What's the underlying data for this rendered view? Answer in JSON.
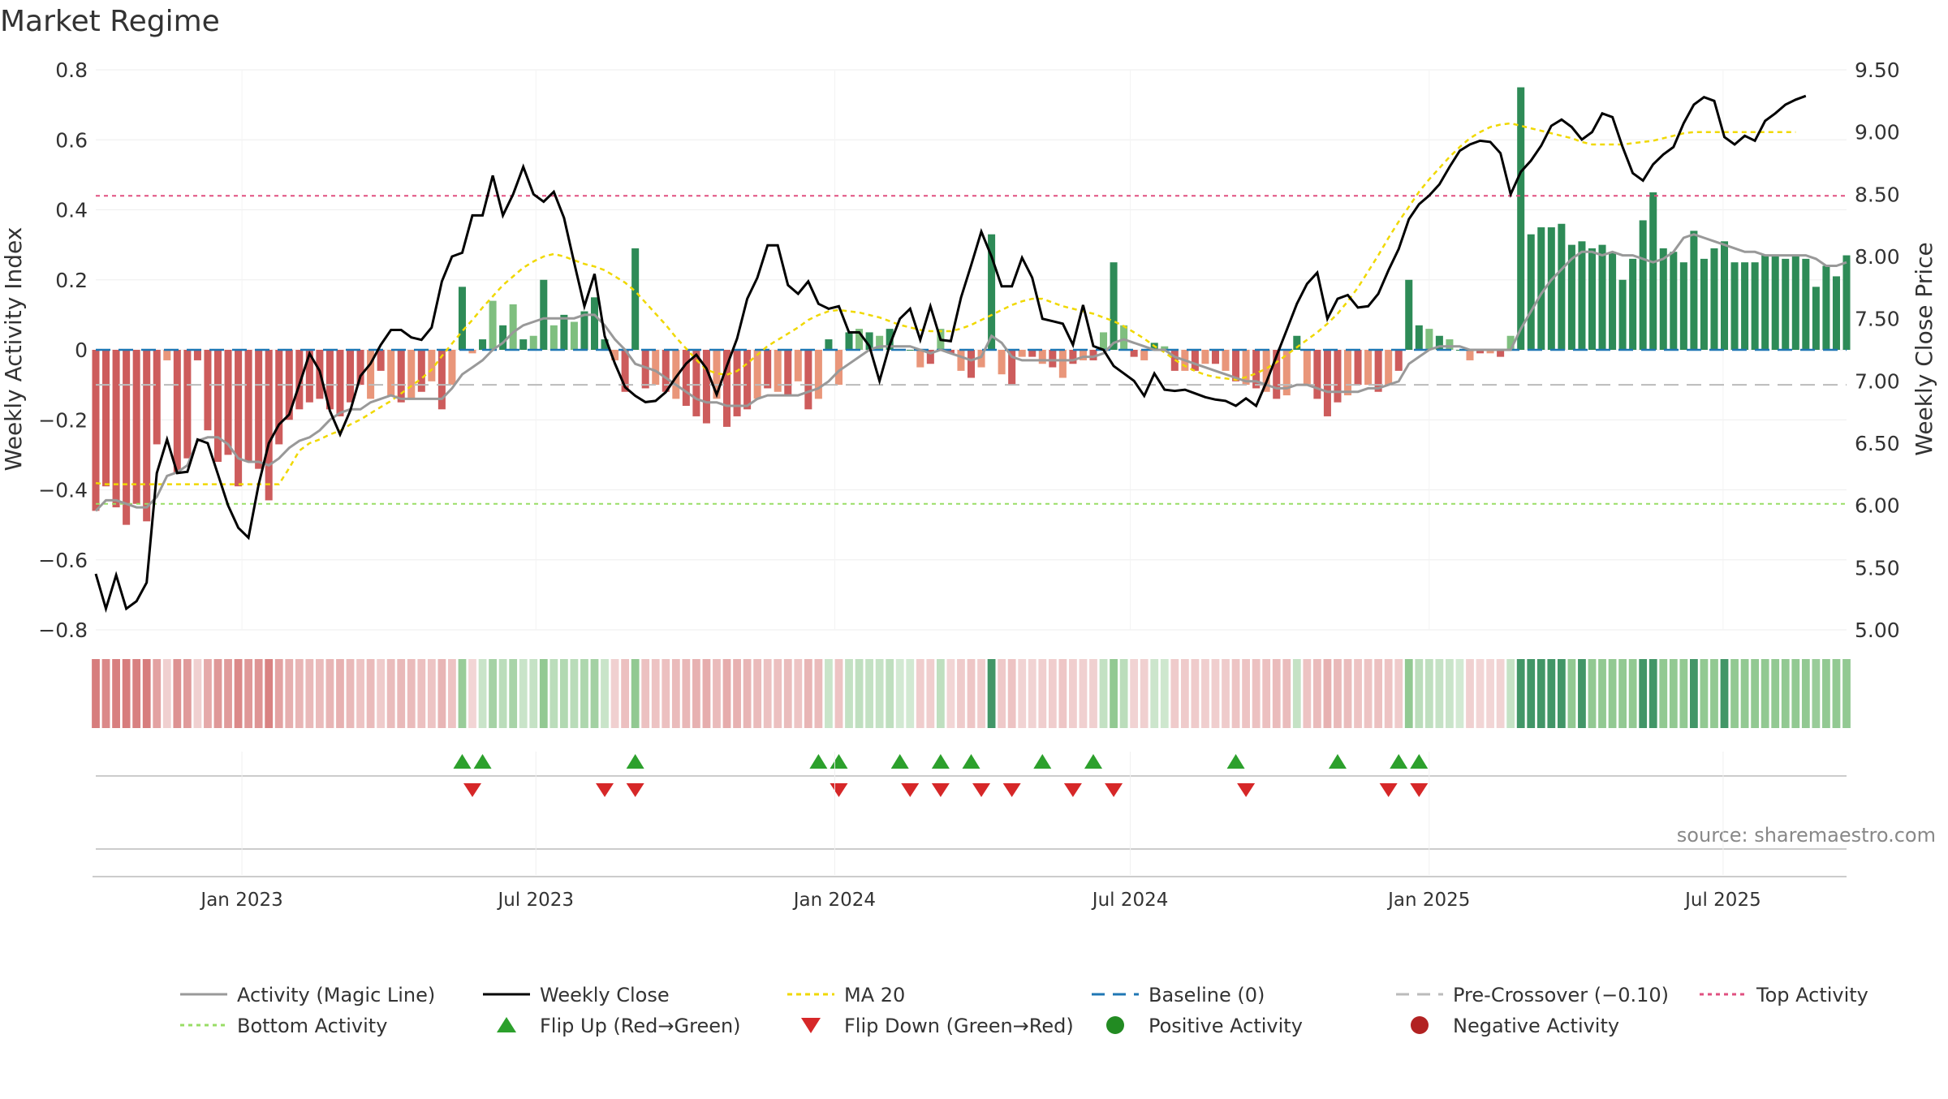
{
  "title": "Market Regime",
  "source": "source: sharemaestro.com",
  "colors": {
    "pos_strong": "#2e8b57",
    "pos_light": "#7fbf7f",
    "neg_strong": "#cd5c5c",
    "neg_light": "#e9967a",
    "magic_line": "#999999",
    "close": "#000000",
    "ma20": "#f0d800",
    "baseline": "#1f77b4",
    "pre_crossover": "#bbbbbb",
    "top": "#e05080",
    "bottom": "#99dd66",
    "flip_up": "#2ca02c",
    "flip_down": "#d62728",
    "pos_dot": "#228b22",
    "neg_dot": "#b22222"
  },
  "chart_data": {
    "type": "bar",
    "title": "Market Regime",
    "left_axis": {
      "label": "Weekly Activity Index",
      "ylim": [
        -0.8,
        0.8
      ],
      "ticks": [
        "0.8",
        "0.6",
        "0.4",
        "0.2",
        "0",
        "−0.2",
        "−0.4",
        "−0.6",
        "−0.8"
      ]
    },
    "right_axis": {
      "label": "Weekly Close Price",
      "ylim": [
        5.0,
        9.5
      ],
      "ticks": [
        "9.50",
        "9.00",
        "8.50",
        "8.00",
        "7.50",
        "7.00",
        "6.50",
        "6.00",
        "5.50",
        "5.00"
      ]
    },
    "x_axis": {
      "start": "2022-10-03",
      "end": "2025-09-15",
      "ticks": [
        "Jan 2023",
        "Jul 2023",
        "Jan 2024",
        "Jul 2024",
        "Jan 2025",
        "Jul 2025"
      ],
      "tick_dates": [
        "2023-01-01",
        "2023-07-01",
        "2024-01-01",
        "2024-07-01",
        "2025-01-01",
        "2025-07-01"
      ]
    },
    "reference_lines": {
      "baseline": 0,
      "pre_crossover": -0.1,
      "top_activity": 0.44,
      "bottom_activity": -0.44
    },
    "grid": true,
    "legend_position": "bottom",
    "legend": [
      "Activity (Magic Line)",
      "Weekly Close",
      "MA 20",
      "Baseline (0)",
      "Pre-Crossover (−0.10)",
      "Top Activity",
      "Bottom Activity",
      "Flip Up (Red→Green)",
      "Flip Down (Green→Red)",
      "Positive Activity",
      "Negative Activity"
    ],
    "activity": [
      -0.46,
      -0.39,
      -0.45,
      -0.5,
      -0.44,
      -0.49,
      -0.27,
      -0.03,
      -0.35,
      -0.31,
      -0.03,
      -0.23,
      -0.32,
      -0.3,
      -0.39,
      -0.32,
      -0.34,
      -0.43,
      -0.27,
      -0.2,
      -0.17,
      -0.15,
      -0.14,
      -0.17,
      -0.19,
      -0.15,
      -0.1,
      -0.14,
      -0.06,
      -0.13,
      -0.15,
      -0.14,
      -0.12,
      -0.09,
      -0.17,
      -0.1,
      0.18,
      -0.01,
      0.03,
      0.14,
      0.07,
      0.13,
      0.03,
      0.04,
      0.2,
      0.07,
      0.1,
      0.08,
      0.11,
      0.15,
      0.03,
      -0.03,
      -0.12,
      0.29,
      -0.11,
      -0.1,
      -0.12,
      -0.14,
      -0.16,
      -0.19,
      -0.21,
      -0.14,
      -0.22,
      -0.19,
      -0.17,
      -0.14,
      -0.11,
      -0.12,
      -0.13,
      -0.09,
      -0.17,
      -0.14,
      0.03,
      -0.1,
      0.05,
      0.06,
      0.05,
      0.04,
      0.06,
      0.0,
      0.0,
      -0.05,
      -0.04,
      0.06,
      -0.01,
      -0.06,
      -0.08,
      -0.05,
      0.33,
      -0.07,
      -0.1,
      -0.02,
      -0.02,
      -0.04,
      -0.05,
      -0.08,
      -0.04,
      -0.03,
      -0.03,
      0.05,
      0.25,
      0.07,
      -0.02,
      -0.03,
      0.02,
      0.01,
      -0.06,
      -0.06,
      -0.06,
      -0.04,
      -0.04,
      -0.06,
      -0.09,
      -0.1,
      -0.11,
      -0.12,
      -0.14,
      -0.13,
      0.04,
      -0.1,
      -0.14,
      -0.19,
      -0.15,
      -0.13,
      -0.1,
      -0.1,
      -0.12,
      -0.1,
      -0.06,
      0.2,
      0.07,
      0.06,
      0.04,
      0.03,
      0.0,
      -0.03,
      -0.01,
      -0.01,
      -0.02,
      0.04,
      0.75,
      0.33,
      0.35,
      0.35,
      0.36,
      0.3,
      0.31,
      0.29,
      0.3,
      0.28,
      0.2,
      0.26,
      0.37,
      0.45,
      0.29,
      0.28,
      0.25,
      0.34,
      0.26,
      0.29,
      0.31,
      0.25,
      0.25,
      0.25,
      0.27,
      0.27,
      0.26,
      0.27,
      0.26,
      0.18,
      0.24,
      0.21,
      0.27
    ],
    "magic_line": [
      -0.46,
      -0.43,
      -0.43,
      -0.44,
      -0.45,
      -0.45,
      -0.42,
      -0.36,
      -0.35,
      -0.33,
      -0.26,
      -0.25,
      -0.25,
      -0.27,
      -0.31,
      -0.32,
      -0.32,
      -0.33,
      -0.31,
      -0.28,
      -0.26,
      -0.25,
      -0.23,
      -0.2,
      -0.18,
      -0.17,
      -0.17,
      -0.15,
      -0.14,
      -0.13,
      -0.14,
      -0.14,
      -0.14,
      -0.14,
      -0.14,
      -0.11,
      -0.07,
      -0.05,
      -0.03,
      0.0,
      0.02,
      0.05,
      0.07,
      0.08,
      0.09,
      0.09,
      0.09,
      0.09,
      0.1,
      0.1,
      0.07,
      0.03,
      0.0,
      -0.04,
      -0.05,
      -0.06,
      -0.08,
      -0.1,
      -0.12,
      -0.14,
      -0.15,
      -0.15,
      -0.16,
      -0.16,
      -0.16,
      -0.14,
      -0.13,
      -0.13,
      -0.13,
      -0.13,
      -0.12,
      -0.11,
      -0.09,
      -0.06,
      -0.04,
      -0.02,
      0.0,
      0.01,
      0.01,
      0.01,
      0.01,
      0.0,
      -0.01,
      0.0,
      -0.01,
      -0.02,
      -0.03,
      -0.02,
      0.04,
      0.02,
      -0.02,
      -0.03,
      -0.03,
      -0.03,
      -0.03,
      -0.03,
      -0.03,
      -0.02,
      -0.02,
      -0.01,
      0.02,
      0.03,
      0.02,
      0.01,
      0.0,
      0.0,
      -0.02,
      -0.03,
      -0.04,
      -0.05,
      -0.06,
      -0.07,
      -0.08,
      -0.09,
      -0.09,
      -0.1,
      -0.11,
      -0.11,
      -0.1,
      -0.1,
      -0.11,
      -0.12,
      -0.12,
      -0.12,
      -0.12,
      -0.11,
      -0.11,
      -0.1,
      -0.09,
      -0.04,
      -0.02,
      0.0,
      0.01,
      0.01,
      0.01,
      0.0,
      0.0,
      0.0,
      0.0,
      0.0,
      0.06,
      0.11,
      0.16,
      0.2,
      0.23,
      0.26,
      0.28,
      0.28,
      0.27,
      0.28,
      0.27,
      0.27,
      0.26,
      0.25,
      0.26,
      0.28,
      0.32,
      0.33,
      0.32,
      0.31,
      0.3,
      0.29,
      0.28,
      0.28,
      0.27,
      0.27,
      0.27,
      0.27,
      0.27,
      0.26,
      0.24,
      0.24,
      0.25
    ],
    "weekly_close": [
      5.45,
      5.17,
      5.44,
      5.17,
      5.23,
      5.38,
      6.26,
      6.53,
      6.26,
      6.27,
      6.53,
      6.5,
      6.25,
      6.0,
      5.82,
      5.74,
      6.17,
      6.5,
      6.65,
      6.73,
      6.97,
      7.22,
      7.08,
      6.76,
      6.57,
      6.76,
      7.04,
      7.14,
      7.29,
      7.41,
      7.41,
      7.35,
      7.33,
      7.43,
      7.8,
      8.0,
      8.03,
      8.33,
      8.33,
      8.65,
      8.33,
      8.5,
      8.72,
      8.5,
      8.44,
      8.52,
      8.31,
      7.95,
      7.6,
      7.86,
      7.36,
      7.14,
      6.95,
      6.88,
      6.83,
      6.84,
      6.91,
      7.03,
      7.14,
      7.21,
      7.1,
      6.89,
      7.12,
      7.34,
      7.66,
      7.83,
      8.09,
      8.09,
      7.77,
      7.7,
      7.8,
      7.62,
      7.58,
      7.6,
      7.39,
      7.39,
      7.28,
      7.0,
      7.29,
      7.5,
      7.58,
      7.33,
      7.6,
      7.33,
      7.32,
      7.67,
      7.93,
      8.2,
      8.0,
      7.76,
      7.76,
      7.99,
      7.83,
      7.5,
      7.48,
      7.46,
      7.29,
      7.61,
      7.28,
      7.25,
      7.12,
      7.06,
      7.0,
      6.88,
      7.06,
      6.93,
      6.92,
      6.93,
      6.9,
      6.87,
      6.85,
      6.84,
      6.8,
      6.86,
      6.8,
      6.99,
      7.2,
      7.41,
      7.62,
      7.78,
      7.87,
      7.5,
      7.66,
      7.69,
      7.59,
      7.6,
      7.7,
      7.89,
      8.06,
      8.3,
      8.42,
      8.49,
      8.58,
      8.72,
      8.85,
      8.9,
      8.93,
      8.92,
      8.83,
      8.5,
      8.68,
      8.77,
      8.89,
      9.05,
      9.1,
      9.04,
      8.94,
      9.0,
      9.15,
      9.12,
      8.88,
      8.67,
      8.61,
      8.74,
      8.82,
      8.88,
      9.07,
      9.22,
      9.28,
      9.25,
      8.96,
      8.9,
      8.97,
      8.93,
      9.09,
      9.15,
      9.22,
      9.26,
      9.29
    ],
    "ma20": [
      6.18,
      6.17,
      6.17,
      6.17,
      6.17,
      6.17,
      6.17,
      6.17,
      6.17,
      6.17,
      6.17,
      6.17,
      6.17,
      6.17,
      6.17,
      6.17,
      6.17,
      6.17,
      6.17,
      6.3,
      6.44,
      6.5,
      6.53,
      6.57,
      6.6,
      6.65,
      6.69,
      6.74,
      6.79,
      6.84,
      6.9,
      6.96,
      7.02,
      7.09,
      7.2,
      7.3,
      7.4,
      7.49,
      7.59,
      7.68,
      7.77,
      7.84,
      7.91,
      7.96,
      8.0,
      8.02,
      8.0,
      7.97,
      7.94,
      7.92,
      7.89,
      7.84,
      7.79,
      7.72,
      7.63,
      7.54,
      7.45,
      7.35,
      7.26,
      7.17,
      7.09,
      7.06,
      7.05,
      7.08,
      7.14,
      7.21,
      7.28,
      7.33,
      7.38,
      7.43,
      7.49,
      7.53,
      7.56,
      7.57,
      7.56,
      7.55,
      7.53,
      7.51,
      7.48,
      7.45,
      7.43,
      7.41,
      7.4,
      7.4,
      7.4,
      7.42,
      7.45,
      7.49,
      7.53,
      7.57,
      7.61,
      7.64,
      7.66,
      7.66,
      7.63,
      7.6,
      7.58,
      7.56,
      7.54,
      7.51,
      7.48,
      7.44,
      7.39,
      7.34,
      7.28,
      7.23,
      7.17,
      7.12,
      7.08,
      7.05,
      7.03,
      7.02,
      7.01,
      7.03,
      7.06,
      7.1,
      7.15,
      7.21,
      7.27,
      7.33,
      7.39,
      7.46,
      7.54,
      7.64,
      7.75,
      7.88,
      8.01,
      8.15,
      8.28,
      8.4,
      8.52,
      8.62,
      8.71,
      8.8,
      8.88,
      8.95,
      9.0,
      9.04,
      9.06,
      9.07,
      9.05,
      9.03,
      9.01,
      8.99,
      8.97,
      8.95,
      8.92,
      8.9,
      8.9,
      8.9,
      8.9,
      8.91,
      8.92,
      8.93,
      8.95,
      8.97,
      8.99,
      9.0,
      9.0,
      9.0,
      9.0,
      9.0,
      9.0,
      9.0,
      9.0,
      9.0,
      9.0,
      9.0
    ],
    "flip_up_weeks": [
      36,
      38,
      53,
      71,
      73,
      79,
      83,
      86,
      93,
      98,
      112,
      122,
      128,
      130
    ],
    "flip_down_weeks": [
      37,
      50,
      53,
      73,
      80,
      83,
      87,
      90,
      96,
      100,
      113,
      127,
      130
    ]
  }
}
